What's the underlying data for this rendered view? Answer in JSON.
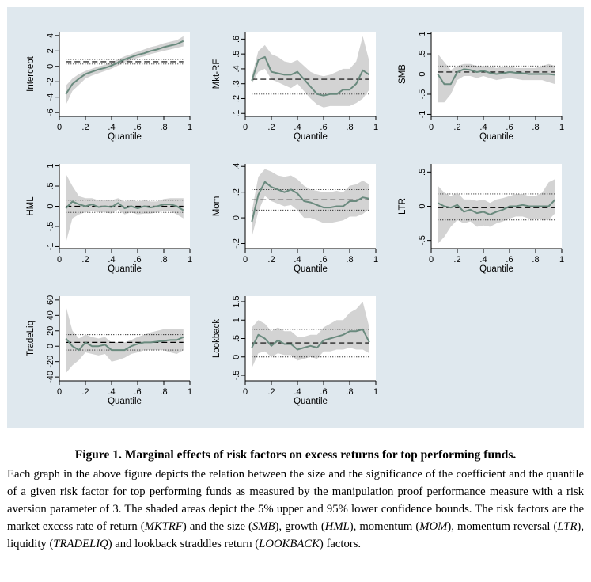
{
  "colors": {
    "panel_bg": "#dfe8ee",
    "plot_bg": "#ffffff",
    "band": "#d3d3d3",
    "estimate": "#6a8a7e",
    "ref_line": "#000000"
  },
  "chart_data": [
    {
      "type": "line",
      "ylabel": "Intercept",
      "xlabel": "Quantile",
      "xlim": [
        0,
        1
      ],
      "ylim": [
        -6.5,
        4.5
      ],
      "xticks": [
        0,
        0.2,
        0.4,
        0.6,
        0.8,
        1
      ],
      "xtick_labels": [
        "0",
        ".2",
        ".4",
        ".6",
        ".8",
        "1"
      ],
      "yticks": [
        -6,
        -4,
        -2,
        0,
        2,
        4
      ],
      "ytick_labels": [
        "-6",
        "-4",
        "-2",
        "0",
        "2",
        "4"
      ],
      "x": [
        0.05,
        0.1,
        0.15,
        0.2,
        0.25,
        0.3,
        0.35,
        0.4,
        0.45,
        0.5,
        0.55,
        0.6,
        0.65,
        0.7,
        0.75,
        0.8,
        0.85,
        0.9,
        0.95
      ],
      "estimate": [
        -3.6,
        -2.3,
        -1.6,
        -1.0,
        -0.7,
        -0.4,
        -0.2,
        0.1,
        0.5,
        0.9,
        1.2,
        1.5,
        1.7,
        2.0,
        2.2,
        2.5,
        2.7,
        2.9,
        3.3
      ],
      "upper": [
        -2.5,
        -1.6,
        -1.0,
        -0.6,
        -0.3,
        0.0,
        0.2,
        0.5,
        0.9,
        1.3,
        1.6,
        1.9,
        2.2,
        2.5,
        2.7,
        3.0,
        3.2,
        3.4,
        3.9
      ],
      "lower": [
        -5.0,
        -3.2,
        -2.4,
        -1.6,
        -1.2,
        -0.9,
        -0.6,
        -0.3,
        0.1,
        0.5,
        0.8,
        1.1,
        1.3,
        1.6,
        1.8,
        2.0,
        2.2,
        2.4,
        2.6
      ],
      "ols": 0.6,
      "ols_upper": 0.9,
      "ols_lower": 0.3
    },
    {
      "type": "line",
      "ylabel": "Mkt-RF",
      "xlabel": "Quantile",
      "xlim": [
        0,
        1
      ],
      "ylim": [
        0.08,
        0.65
      ],
      "xticks": [
        0,
        0.2,
        0.4,
        0.6,
        0.8,
        1
      ],
      "xtick_labels": [
        "0",
        ".2",
        ".4",
        ".6",
        ".8",
        "1"
      ],
      "yticks": [
        0.1,
        0.2,
        0.3,
        0.4,
        0.5,
        0.6
      ],
      "ytick_labels": [
        ".1",
        ".2",
        ".3",
        ".4",
        ".5",
        ".6"
      ],
      "x": [
        0.05,
        0.1,
        0.15,
        0.2,
        0.25,
        0.3,
        0.35,
        0.4,
        0.45,
        0.5,
        0.55,
        0.6,
        0.65,
        0.7,
        0.75,
        0.8,
        0.85,
        0.9,
        0.95
      ],
      "estimate": [
        0.32,
        0.46,
        0.48,
        0.38,
        0.37,
        0.36,
        0.36,
        0.38,
        0.33,
        0.28,
        0.23,
        0.22,
        0.23,
        0.23,
        0.26,
        0.26,
        0.3,
        0.39,
        0.36
      ],
      "upper": [
        0.35,
        0.52,
        0.56,
        0.5,
        0.48,
        0.45,
        0.44,
        0.46,
        0.42,
        0.38,
        0.36,
        0.35,
        0.36,
        0.38,
        0.4,
        0.4,
        0.45,
        0.62,
        0.45
      ],
      "lower": [
        0.3,
        0.38,
        0.4,
        0.33,
        0.31,
        0.29,
        0.27,
        0.3,
        0.25,
        0.2,
        0.16,
        0.14,
        0.15,
        0.15,
        0.15,
        0.15,
        0.17,
        0.2,
        0.26
      ],
      "ols": 0.33,
      "ols_upper": 0.44,
      "ols_lower": 0.23
    },
    {
      "type": "line",
      "ylabel": "SMB",
      "xlabel": "Quantile",
      "xlim": [
        0,
        1
      ],
      "ylim": [
        -1.05,
        1.05
      ],
      "xticks": [
        0,
        0.2,
        0.4,
        0.6,
        0.8,
        1
      ],
      "xtick_labels": [
        "0",
        ".2",
        ".4",
        ".6",
        ".8",
        "1"
      ],
      "yticks": [
        -1,
        -0.5,
        0,
        0.5,
        1
      ],
      "ytick_labels": [
        "-1",
        "-.5",
        "0",
        ".5",
        "1"
      ],
      "x": [
        0.05,
        0.1,
        0.15,
        0.2,
        0.25,
        0.3,
        0.35,
        0.4,
        0.45,
        0.5,
        0.55,
        0.6,
        0.65,
        0.7,
        0.75,
        0.8,
        0.85,
        0.9,
        0.95
      ],
      "estimate": [
        0.0,
        -0.25,
        -0.25,
        0.05,
        0.12,
        0.1,
        0.05,
        0.08,
        0.03,
        0.0,
        0.02,
        0.05,
        0.03,
        0.02,
        0.0,
        0.0,
        0.0,
        0.0,
        -0.02
      ],
      "upper": [
        0.5,
        0.3,
        0.1,
        0.2,
        0.25,
        0.25,
        0.2,
        0.2,
        0.18,
        0.15,
        0.18,
        0.18,
        0.15,
        0.15,
        0.15,
        0.15,
        0.2,
        0.25,
        0.2
      ],
      "lower": [
        -0.7,
        -0.7,
        -0.5,
        -0.15,
        -0.05,
        -0.05,
        -0.1,
        -0.05,
        -0.1,
        -0.15,
        -0.12,
        -0.1,
        -0.12,
        -0.15,
        -0.15,
        -0.15,
        -0.15,
        -0.2,
        -0.25
      ],
      "ols": 0.05,
      "ols_upper": 0.2,
      "ols_lower": -0.1
    },
    {
      "type": "line",
      "ylabel": "HML",
      "xlabel": "Quantile",
      "xlim": [
        0,
        1
      ],
      "ylim": [
        -1.05,
        1.05
      ],
      "xticks": [
        0,
        0.2,
        0.4,
        0.6,
        0.8,
        1
      ],
      "xtick_labels": [
        "0",
        ".2",
        ".4",
        ".6",
        ".8",
        "1"
      ],
      "yticks": [
        -1,
        -0.5,
        0,
        0.5,
        1
      ],
      "ytick_labels": [
        "-1",
        "-.5",
        "0",
        ".5",
        "1"
      ],
      "x": [
        0.05,
        0.1,
        0.15,
        0.2,
        0.25,
        0.3,
        0.35,
        0.4,
        0.45,
        0.5,
        0.55,
        0.6,
        0.65,
        0.7,
        0.75,
        0.8,
        0.85,
        0.9,
        0.95
      ],
      "estimate": [
        -0.05,
        0.12,
        0.05,
        0.0,
        0.05,
        -0.02,
        0.0,
        -0.02,
        0.08,
        -0.05,
        0.0,
        -0.05,
        0.0,
        -0.03,
        0.0,
        0.05,
        0.05,
        0.0,
        -0.1
      ],
      "upper": [
        0.8,
        0.5,
        0.25,
        0.2,
        0.2,
        0.15,
        0.15,
        0.15,
        0.2,
        0.12,
        0.15,
        0.12,
        0.15,
        0.12,
        0.12,
        0.18,
        0.2,
        0.2,
        0.2
      ],
      "lower": [
        -0.9,
        -0.3,
        -0.2,
        -0.15,
        -0.12,
        -0.15,
        -0.15,
        -0.18,
        -0.08,
        -0.2,
        -0.15,
        -0.2,
        -0.18,
        -0.18,
        -0.15,
        -0.12,
        -0.12,
        -0.2,
        -0.3
      ],
      "ols": 0.0,
      "ols_upper": 0.15,
      "ols_lower": -0.15
    },
    {
      "type": "line",
      "ylabel": "Mom",
      "xlabel": "Quantile",
      "xlim": [
        0,
        1
      ],
      "ylim": [
        -0.24,
        0.42
      ],
      "xticks": [
        0,
        0.2,
        0.4,
        0.6,
        0.8,
        1
      ],
      "xtick_labels": [
        "0",
        ".2",
        ".4",
        ".6",
        ".8",
        "1"
      ],
      "yticks": [
        -0.2,
        0,
        0.2,
        0.4
      ],
      "ytick_labels": [
        "-.2",
        "0",
        ".2",
        ".4"
      ],
      "x": [
        0.05,
        0.1,
        0.15,
        0.2,
        0.25,
        0.3,
        0.35,
        0.4,
        0.45,
        0.5,
        0.55,
        0.6,
        0.65,
        0.7,
        0.75,
        0.8,
        0.85,
        0.9,
        0.95
      ],
      "estimate": [
        -0.03,
        0.18,
        0.28,
        0.24,
        0.22,
        0.2,
        0.22,
        0.19,
        0.13,
        0.12,
        0.1,
        0.08,
        0.08,
        0.09,
        0.09,
        0.13,
        0.13,
        0.16,
        0.15
      ],
      "upper": [
        0.05,
        0.32,
        0.38,
        0.36,
        0.33,
        0.32,
        0.33,
        0.3,
        0.25,
        0.22,
        0.21,
        0.2,
        0.2,
        0.21,
        0.2,
        0.25,
        0.26,
        0.29,
        0.26
      ],
      "lower": [
        -0.15,
        0.05,
        0.17,
        0.13,
        0.11,
        0.09,
        0.1,
        0.06,
        0.0,
        0.0,
        -0.02,
        -0.04,
        -0.04,
        -0.03,
        -0.02,
        0.01,
        0.01,
        0.03,
        0.07
      ],
      "ols": 0.14,
      "ols_upper": 0.22,
      "ols_lower": 0.06
    },
    {
      "type": "line",
      "ylabel": "LTR",
      "xlabel": "Quantile",
      "xlim": [
        0,
        1
      ],
      "ylim": [
        -0.62,
        0.62
      ],
      "xticks": [
        0,
        0.2,
        0.4,
        0.6,
        0.8,
        1
      ],
      "xtick_labels": [
        "0",
        ".2",
        ".4",
        ".6",
        ".8",
        "1"
      ],
      "yticks": [
        -0.5,
        0,
        0.5
      ],
      "ytick_labels": [
        "-.5",
        "0",
        ".5"
      ],
      "x": [
        0.05,
        0.1,
        0.15,
        0.2,
        0.25,
        0.3,
        0.35,
        0.4,
        0.45,
        0.5,
        0.55,
        0.6,
        0.65,
        0.7,
        0.75,
        0.8,
        0.85,
        0.9,
        0.95
      ],
      "estimate": [
        0.05,
        0.0,
        -0.02,
        0.02,
        -0.08,
        -0.05,
        -0.1,
        -0.08,
        -0.12,
        -0.08,
        -0.05,
        0.0,
        0.0,
        0.02,
        0.0,
        0.0,
        0.0,
        0.0,
        0.1
      ],
      "upper": [
        0.3,
        0.2,
        0.15,
        0.2,
        0.1,
        0.1,
        0.08,
        0.1,
        0.05,
        0.1,
        0.12,
        0.15,
        0.18,
        0.18,
        0.15,
        0.15,
        0.2,
        0.35,
        0.4
      ],
      "lower": [
        -0.55,
        -0.45,
        -0.3,
        -0.2,
        -0.25,
        -0.22,
        -0.3,
        -0.28,
        -0.3,
        -0.25,
        -0.22,
        -0.18,
        -0.15,
        -0.15,
        -0.18,
        -0.18,
        -0.2,
        -0.2,
        -0.1
      ],
      "ols": -0.02,
      "ols_upper": 0.18,
      "ols_lower": -0.2
    },
    {
      "type": "line",
      "ylabel": "TradeLiq",
      "xlabel": "Quantile",
      "xlim": [
        0,
        1
      ],
      "ylim": [
        -45,
        65
      ],
      "xticks": [
        0,
        0.2,
        0.4,
        0.6,
        0.8,
        1
      ],
      "xtick_labels": [
        "0",
        ".2",
        ".4",
        ".6",
        ".8",
        "1"
      ],
      "yticks": [
        -40,
        -20,
        0,
        20,
        40,
        60
      ],
      "ytick_labels": [
        "-40",
        "-20",
        "0",
        "20",
        "40",
        "60"
      ],
      "x": [
        0.05,
        0.1,
        0.15,
        0.2,
        0.25,
        0.3,
        0.35,
        0.4,
        0.45,
        0.5,
        0.55,
        0.6,
        0.65,
        0.7,
        0.75,
        0.8,
        0.85,
        0.9,
        0.95
      ],
      "estimate": [
        10,
        0,
        -5,
        5,
        0,
        0,
        2,
        -5,
        -5,
        -5,
        0,
        3,
        5,
        5,
        6,
        7,
        8,
        8,
        12
      ],
      "upper": [
        52,
        20,
        10,
        15,
        12,
        10,
        12,
        5,
        5,
        5,
        8,
        12,
        15,
        18,
        20,
        22,
        22,
        22,
        22
      ],
      "lower": [
        -35,
        -25,
        -18,
        -8,
        -10,
        -12,
        -10,
        -20,
        -18,
        -15,
        -10,
        -8,
        -5,
        -5,
        -5,
        -5,
        -8,
        -10,
        -5
      ],
      "ols": 5,
      "ols_upper": 15,
      "ols_lower": -5
    },
    {
      "type": "line",
      "ylabel": "Lookback",
      "xlabel": "Quantile",
      "xlim": [
        0,
        1
      ],
      "ylim": [
        -0.65,
        1.65
      ],
      "xticks": [
        0,
        0.2,
        0.4,
        0.6,
        0.8,
        1
      ],
      "xtick_labels": [
        "0",
        ".2",
        ".4",
        ".6",
        ".8",
        "1"
      ],
      "yticks": [
        -0.5,
        0,
        0.5,
        1,
        1.5
      ],
      "ytick_labels": [
        "-.5",
        "0",
        ".5",
        "1",
        "1.5"
      ],
      "x": [
        0.05,
        0.1,
        0.15,
        0.2,
        0.25,
        0.3,
        0.35,
        0.4,
        0.45,
        0.5,
        0.55,
        0.6,
        0.65,
        0.7,
        0.75,
        0.8,
        0.85,
        0.9,
        0.95
      ],
      "estimate": [
        0.25,
        0.6,
        0.5,
        0.3,
        0.45,
        0.35,
        0.35,
        0.2,
        0.25,
        0.3,
        0.25,
        0.45,
        0.5,
        0.55,
        0.6,
        0.7,
        0.7,
        0.75,
        0.4
      ],
      "upper": [
        0.8,
        1.0,
        0.9,
        0.7,
        0.8,
        0.7,
        0.7,
        0.55,
        0.55,
        0.6,
        0.6,
        0.8,
        0.9,
        1.0,
        1.0,
        1.2,
        1.3,
        1.5,
        0.8
      ],
      "lower": [
        -0.3,
        0.1,
        0.15,
        0.0,
        0.1,
        0.05,
        0.05,
        -0.1,
        -0.05,
        0.0,
        -0.05,
        0.15,
        0.15,
        0.2,
        0.2,
        0.25,
        0.2,
        0.2,
        0.1
      ],
      "ols": 0.38,
      "ols_upper": 0.75,
      "ols_lower": 0.0
    }
  ],
  "caption": {
    "title": "Figure 1. Marginal effects of risk factors on excess returns for top performing funds.",
    "body_parts": [
      {
        "text": "Each graph in the above figure depicts the relation between the size and the significance of the coefficient and the quantile of a given risk factor for top performing funds as measured by the manipulation proof performance measure with a risk aversion parameter of 3. The shaded areas depict the 5% upper and 95% lower confidence bounds. The risk factors are the market excess rate of return (",
        "italic": false
      },
      {
        "text": "MKTRF",
        "italic": true
      },
      {
        "text": ") and the size (",
        "italic": false
      },
      {
        "text": "SMB",
        "italic": true
      },
      {
        "text": "), growth (",
        "italic": false
      },
      {
        "text": "HML",
        "italic": true
      },
      {
        "text": "), momentum (",
        "italic": false
      },
      {
        "text": "MOM",
        "italic": true
      },
      {
        "text": "), momentum reversal (",
        "italic": false
      },
      {
        "text": "LTR",
        "italic": true
      },
      {
        "text": "), liquidity (",
        "italic": false
      },
      {
        "text": "TRADELIQ",
        "italic": true
      },
      {
        "text": ") and lookback straddles return (",
        "italic": false
      },
      {
        "text": "LOOKBACK",
        "italic": true
      },
      {
        "text": ") factors.",
        "italic": false
      }
    ]
  }
}
